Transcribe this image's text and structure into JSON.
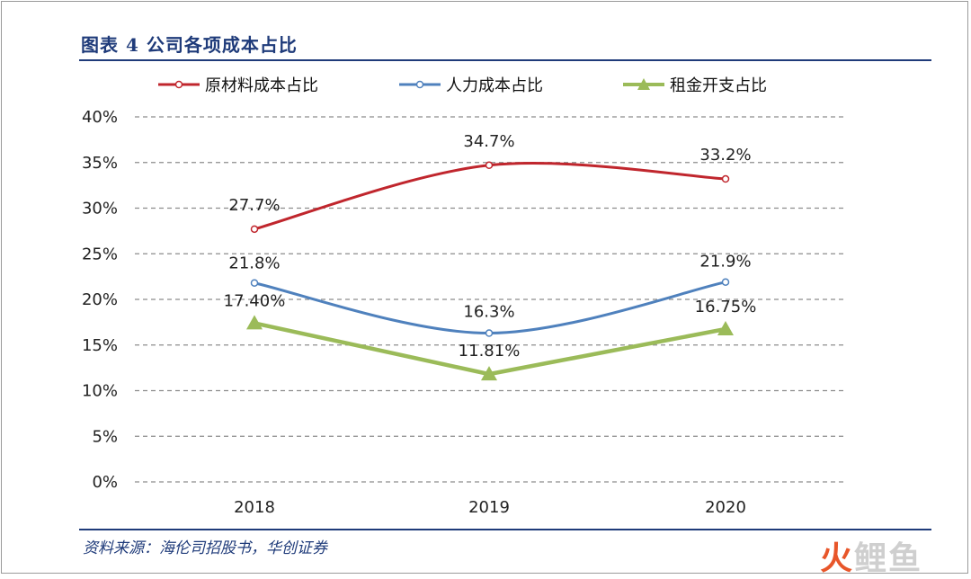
{
  "figure": {
    "title": "图表 4   公司各项成本占比",
    "source": "资料来源：海伦司招股书，华创证券"
  },
  "watermark": {
    "part1": "火",
    "part2": "鲤鱼"
  },
  "chart_data": {
    "type": "line",
    "categories": [
      "2018",
      "2019",
      "2020"
    ],
    "ylim": [
      0,
      40
    ],
    "yticks": [
      0,
      5,
      10,
      15,
      20,
      25,
      30,
      35,
      40
    ],
    "ytick_labels": [
      "0%",
      "5%",
      "10%",
      "15%",
      "20%",
      "25%",
      "30%",
      "35%",
      "40%"
    ],
    "grid": "horizontal-dashed",
    "legend_position": "top",
    "series": [
      {
        "name": "原材料成本占比",
        "values": [
          27.7,
          34.7,
          33.2
        ],
        "labels": [
          "27.7%",
          "34.7%",
          "33.2%"
        ],
        "color": "#c0262d",
        "marker": "circle",
        "smooth": true
      },
      {
        "name": "人力成本占比",
        "values": [
          21.8,
          16.3,
          21.9
        ],
        "labels": [
          "21.8%",
          "16.3%",
          "21.9%"
        ],
        "color": "#4f81bd",
        "marker": "circle",
        "smooth": true
      },
      {
        "name": "租金开支占比",
        "values": [
          17.4,
          11.81,
          16.75
        ],
        "labels": [
          "17.40%",
          "11.81%",
          "16.75%"
        ],
        "color": "#9bbb59",
        "marker": "triangle",
        "smooth": false
      }
    ]
  }
}
